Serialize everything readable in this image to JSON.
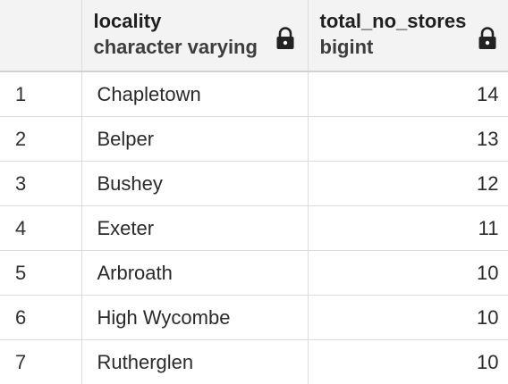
{
  "columns": [
    {
      "name": "locality",
      "type": "character varying",
      "locked": true,
      "icon": "lock-icon"
    },
    {
      "name": "total_no_stores",
      "type": "bigint",
      "locked": true,
      "icon": "lock-icon"
    }
  ],
  "rows": [
    {
      "row": "1",
      "locality": "Chapletown",
      "total_no_stores": "14"
    },
    {
      "row": "2",
      "locality": "Belper",
      "total_no_stores": "13"
    },
    {
      "row": "3",
      "locality": "Bushey",
      "total_no_stores": "12"
    },
    {
      "row": "4",
      "locality": "Exeter",
      "total_no_stores": "11"
    },
    {
      "row": "5",
      "locality": "Arbroath",
      "total_no_stores": "10"
    },
    {
      "row": "6",
      "locality": "High Wycombe",
      "total_no_stores": "10"
    },
    {
      "row": "7",
      "locality": "Rutherglen",
      "total_no_stores": "10"
    }
  ]
}
